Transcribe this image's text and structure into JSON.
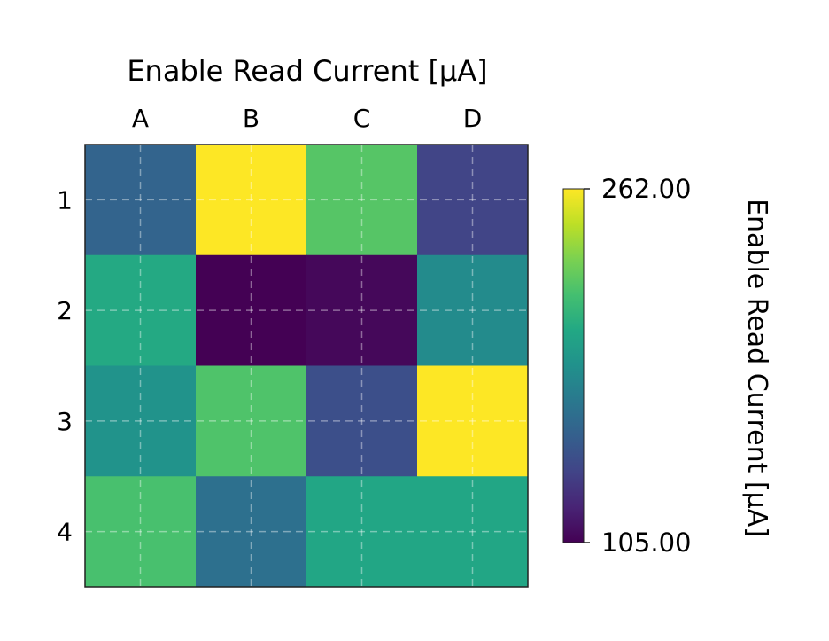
{
  "chart_data": {
    "type": "heatmap",
    "title": "Enable Read Current [μA]",
    "x_categories": [
      "A",
      "B",
      "C",
      "D"
    ],
    "y_categories": [
      "1",
      "2",
      "3",
      "4"
    ],
    "values": [
      [
        155,
        262,
        220,
        137
      ],
      [
        200,
        105,
        108,
        180
      ],
      [
        185,
        218,
        143,
        262
      ],
      [
        216,
        163,
        198,
        198
      ]
    ],
    "colormap": "viridis",
    "color_range": [
      105,
      262
    ],
    "grid": true,
    "colorbar": {
      "label": "Enable Read Current [μA]",
      "tick_labels": [
        "262.00",
        "105.00"
      ],
      "position": "right"
    }
  }
}
